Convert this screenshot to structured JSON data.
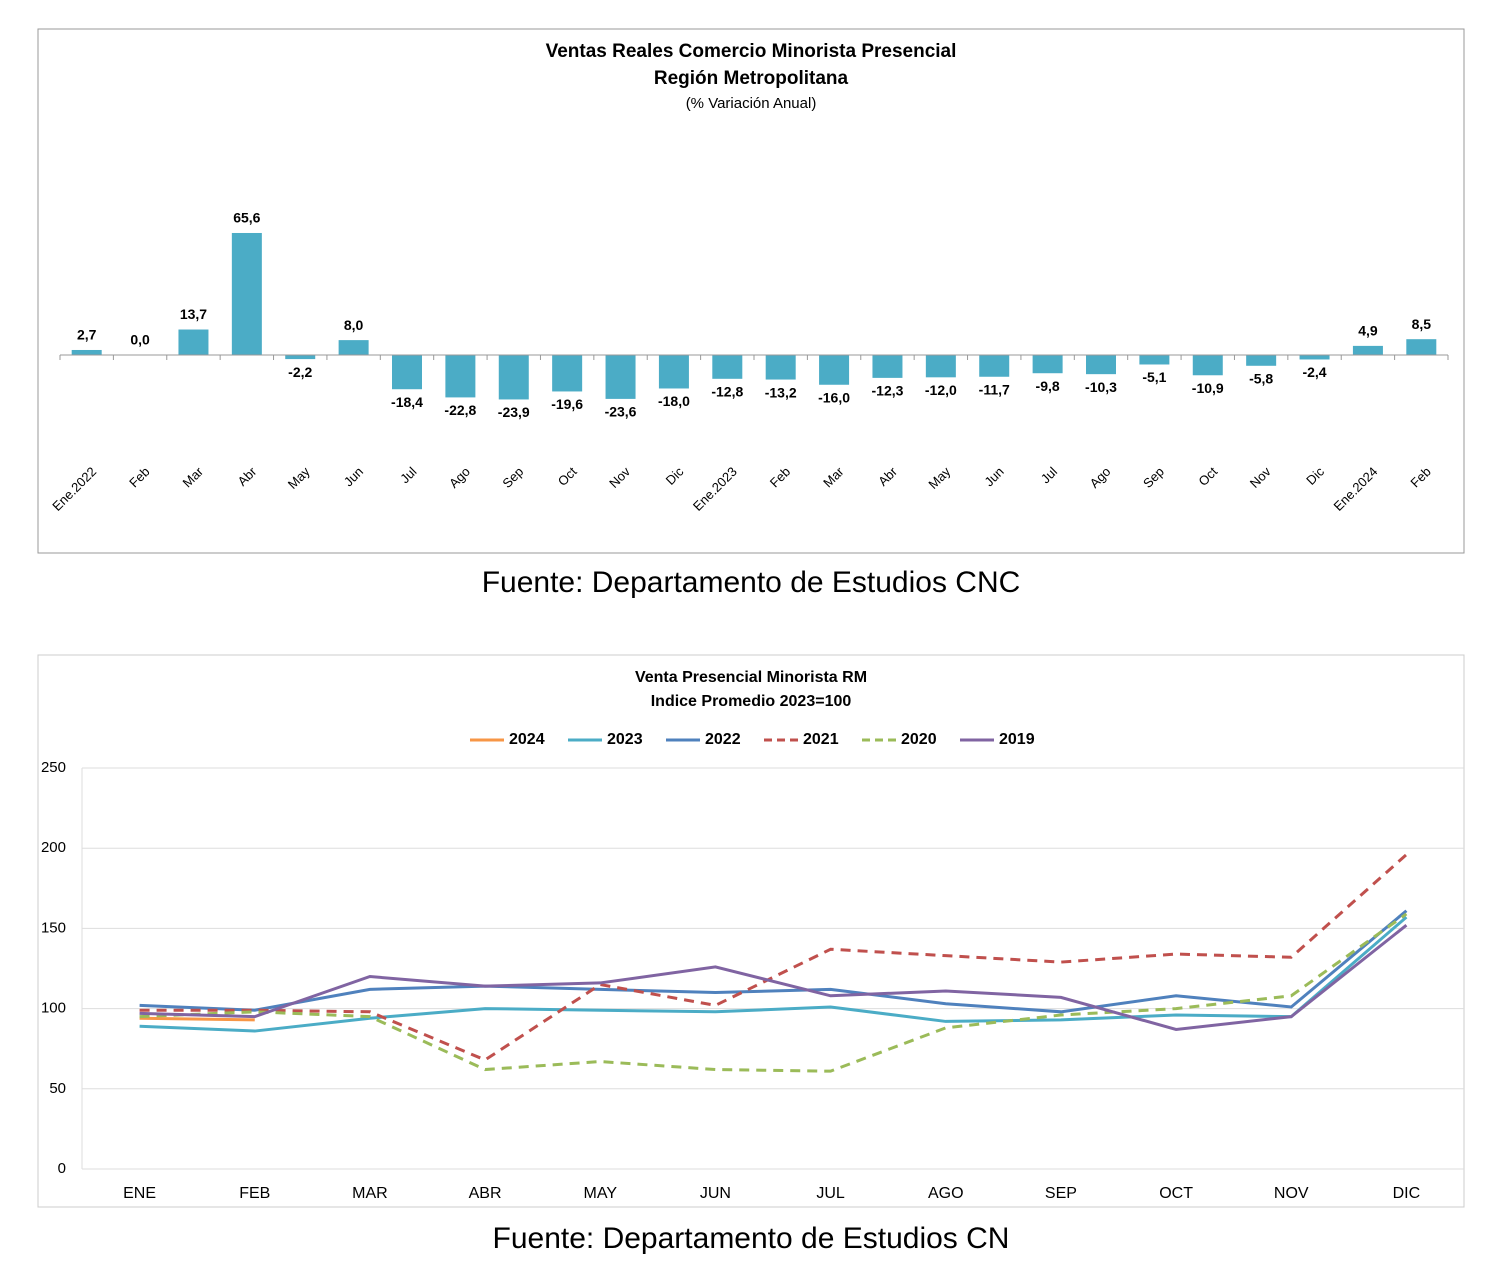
{
  "chart_data": [
    {
      "type": "bar",
      "title": "Ventas Reales Comercio Minorista Presencial",
      "subtitle": "Región Metropolitana",
      "units": "(% Variación Anual)",
      "source": "Fuente: Departamento de Estudios CNC",
      "categories": [
        "Ene.2022",
        "Feb",
        "Mar",
        "Abr",
        "May",
        "Jun",
        "Jul",
        "Ago",
        "Sep",
        "Oct",
        "Nov",
        "Dic",
        "Ene.2023",
        "Feb",
        "Mar",
        "Abr",
        "May",
        "Jun",
        "Jul",
        "Ago",
        "Sep",
        "Oct",
        "Nov",
        "Dic",
        "Ene.2024",
        "Feb"
      ],
      "values": [
        2.7,
        0.0,
        13.7,
        65.6,
        -2.2,
        8.0,
        -18.4,
        -22.8,
        -23.9,
        -19.6,
        -23.6,
        -18.0,
        -12.8,
        -13.2,
        -16.0,
        -12.3,
        -12.0,
        -11.7,
        -9.8,
        -10.3,
        -5.1,
        -10.9,
        -5.8,
        -2.4,
        4.9,
        8.5
      ],
      "value_labels": [
        "2,7",
        "0,0",
        "13,7",
        "65,6",
        "-2,2",
        "8,0",
        "-18,4",
        "-22,8",
        "-23,9",
        "-19,6",
        "-23,6",
        "-18,0",
        "-12,8",
        "-13,2",
        "-16,0",
        "-12,3",
        "-12,0",
        "-11,7",
        "-9,8",
        "-10,3",
        "-5,1",
        "-10,9",
        "-5,8",
        "-2,4",
        "4,9",
        "8,5"
      ],
      "color": "#4bacc6",
      "ylim": [
        -50,
        100
      ]
    },
    {
      "type": "line",
      "title": "Venta Presencial Minorista RM",
      "subtitle": "Indice Promedio 2023=100",
      "source": "Fuente: Departamento de Estudios CN",
      "categories": [
        "ENE",
        "FEB",
        "MAR",
        "ABR",
        "MAY",
        "JUN",
        "JUL",
        "AGO",
        "SEP",
        "OCT",
        "NOV",
        "DIC"
      ],
      "series": [
        {
          "name": "2024",
          "color": "#f79646",
          "dashed": false,
          "values": [
            94,
            93,
            null,
            null,
            null,
            null,
            null,
            null,
            null,
            null,
            null,
            null
          ]
        },
        {
          "name": "2023",
          "color": "#4bacc6",
          "dashed": false,
          "values": [
            89,
            86,
            94,
            100,
            99,
            98,
            101,
            92,
            93,
            96,
            95,
            157
          ]
        },
        {
          "name": "2022",
          "color": "#4f81bd",
          "dashed": false,
          "values": [
            102,
            99,
            112,
            114,
            112,
            110,
            112,
            103,
            98,
            108,
            101,
            161
          ]
        },
        {
          "name": "2021",
          "color": "#c0504d",
          "dashed": true,
          "values": [
            99,
            99,
            98,
            68,
            115,
            102,
            137,
            133,
            129,
            134,
            132,
            196
          ]
        },
        {
          "name": "2020",
          "color": "#9bbb59",
          "dashed": true,
          "values": [
            95,
            98,
            95,
            62,
            67,
            62,
            61,
            88,
            96,
            100,
            108,
            159
          ]
        },
        {
          "name": "2019",
          "color": "#8064a2",
          "dashed": false,
          "values": [
            97,
            95,
            120,
            114,
            116,
            126,
            108,
            111,
            107,
            87,
            95,
            152
          ]
        }
      ],
      "ylim": [
        0,
        250
      ],
      "yticks": [
        0,
        50,
        100,
        150,
        200,
        250
      ],
      "grid": true,
      "legend": "top"
    }
  ]
}
